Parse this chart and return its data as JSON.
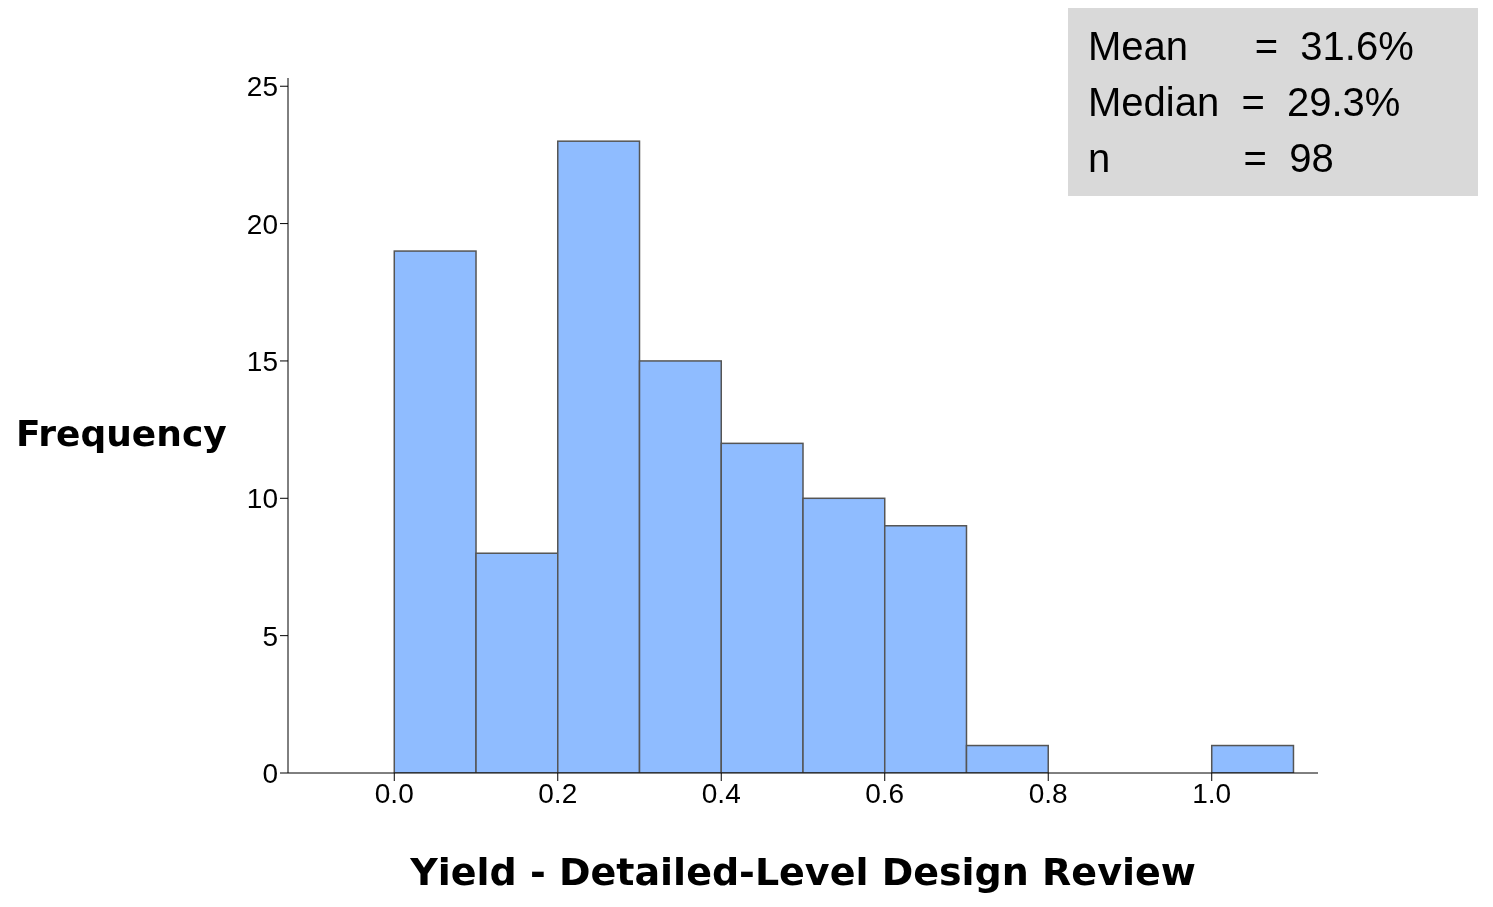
{
  "chart_data": {
    "type": "histogram",
    "xlabel": "Yield - Detailed-Level Design Review",
    "ylabel": "Frequency",
    "bins": [
      0.0,
      0.1,
      0.2,
      0.3,
      0.4,
      0.5,
      0.6,
      0.7,
      0.8,
      0.9,
      1.0,
      1.1
    ],
    "values": [
      19,
      8,
      23,
      15,
      12,
      10,
      9,
      1,
      0,
      0,
      1
    ],
    "color": "#8fbcff",
    "xlim": [
      -0.13,
      1.13
    ],
    "xticks": [
      {
        "value": 0,
        "label": "0.0"
      },
      0.2,
      0.4,
      0.6,
      0.8,
      {
        "value": 1,
        "label": "1.0"
      }
    ],
    "ylim": [
      0,
      25.3
    ],
    "yticks": [
      0,
      5,
      10,
      15,
      20,
      25
    ],
    "annotations": [
      "Mean      =  31.6%",
      "Median  =  29.3%",
      "n            =  98"
    ]
  }
}
